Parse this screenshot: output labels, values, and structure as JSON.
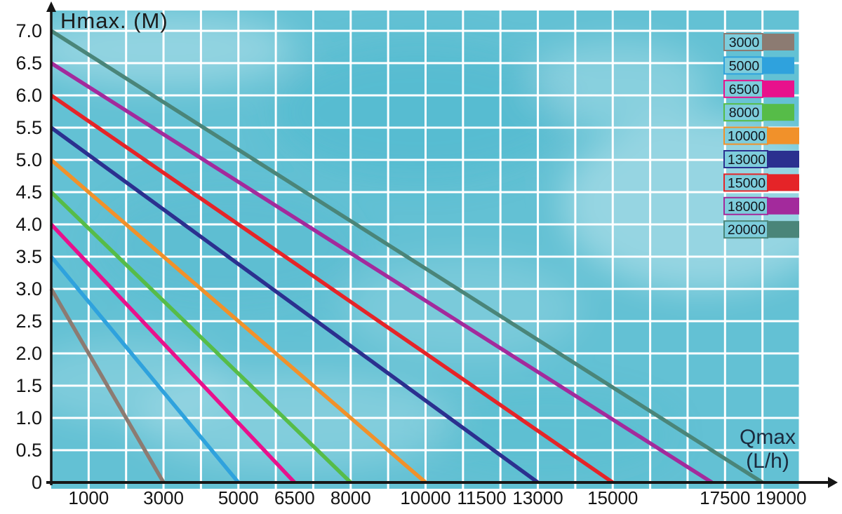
{
  "chart_data": {
    "type": "line",
    "description_visible_text_only": true,
    "y_axis": {
      "title": "Hmax. (M)",
      "min": 0,
      "max": 7,
      "tick_step": 0.5,
      "ticks": [
        {
          "label": "7.0",
          "v": 7.0
        },
        {
          "label": "6.5",
          "v": 6.5
        },
        {
          "label": "6.0",
          "v": 6.0
        },
        {
          "label": "5.5",
          "v": 5.5
        },
        {
          "label": "5.0",
          "v": 5.0
        },
        {
          "label": "4.5",
          "v": 4.5
        },
        {
          "label": "4.0",
          "v": 4.0
        },
        {
          "label": "3.5",
          "v": 3.5
        },
        {
          "label": "3.0",
          "v": 3.0
        },
        {
          "label": "2.5",
          "v": 2.5
        },
        {
          "label": "2.0",
          "v": 2.0
        },
        {
          "label": "1.5",
          "v": 1.5
        },
        {
          "label": "1.0",
          "v": 1.0
        },
        {
          "label": "0.5",
          "v": 0.5
        },
        {
          "label": "0",
          "v": 0.0
        }
      ]
    },
    "x_axis": {
      "title_line1": "Qmax",
      "title_line2": "(L/h)",
      "min": 0,
      "max": 20000,
      "grid_step": 1000,
      "ticks": [
        {
          "label": "1000",
          "q": 1000
        },
        {
          "label": "3000",
          "q": 3000
        },
        {
          "label": "5000",
          "q": 5000
        },
        {
          "label": "6500",
          "q": 6500
        },
        {
          "label": "8000",
          "q": 8000
        },
        {
          "label": "10000",
          "q": 10000
        },
        {
          "label": "11500",
          "q": 11500
        },
        {
          "label": "13000",
          "q": 13000
        },
        {
          "label": "15000",
          "q": 15000
        },
        {
          "label": "17500",
          "q": 18000
        },
        {
          "label": "19000",
          "q": 19500
        }
      ]
    },
    "series": [
      {
        "label": "3000",
        "color": "#8c7b72",
        "hmax_m": 3.0,
        "q_end_drawn": 3000
      },
      {
        "label": "5000",
        "color": "#2fa2dd",
        "hmax_m": 3.5,
        "q_end_drawn": 5000
      },
      {
        "label": "6500",
        "color": "#e8118c",
        "hmax_m": 4.0,
        "q_end_drawn": 6500
      },
      {
        "label": "8000",
        "color": "#56bc48",
        "hmax_m": 4.5,
        "q_end_drawn": 8000
      },
      {
        "label": "10000",
        "color": "#f1912a",
        "hmax_m": 5.0,
        "q_end_drawn": 10000
      },
      {
        "label": "13000",
        "color": "#2b308f",
        "hmax_m": 5.5,
        "q_end_drawn": 13000
      },
      {
        "label": "15000",
        "color": "#e52428",
        "hmax_m": 6.0,
        "q_end_drawn": 15000
      },
      {
        "label": "18000",
        "color": "#a32a9c",
        "hmax_m": 6.5,
        "q_end_drawn": 17650
      },
      {
        "label": "20000",
        "color": "#4a8579",
        "hmax_m": 7.0,
        "q_end_drawn": 19000
      }
    ],
    "legend": {
      "position": "top-right",
      "entries": [
        "3000",
        "5000",
        "6500",
        "8000",
        "10000",
        "13000",
        "15000",
        "18000",
        "20000"
      ]
    },
    "grid": {
      "on": true,
      "color": "#ffffff"
    },
    "colors": {
      "plot_background": "#63c1d4",
      "legend_box_background": "#7ecddc",
      "axis": "#161616",
      "tick_text": "#141414",
      "y_title_text": "#1b1b1b",
      "x_title_text": "#1b2a3d",
      "page_background": "#ffffff"
    }
  }
}
